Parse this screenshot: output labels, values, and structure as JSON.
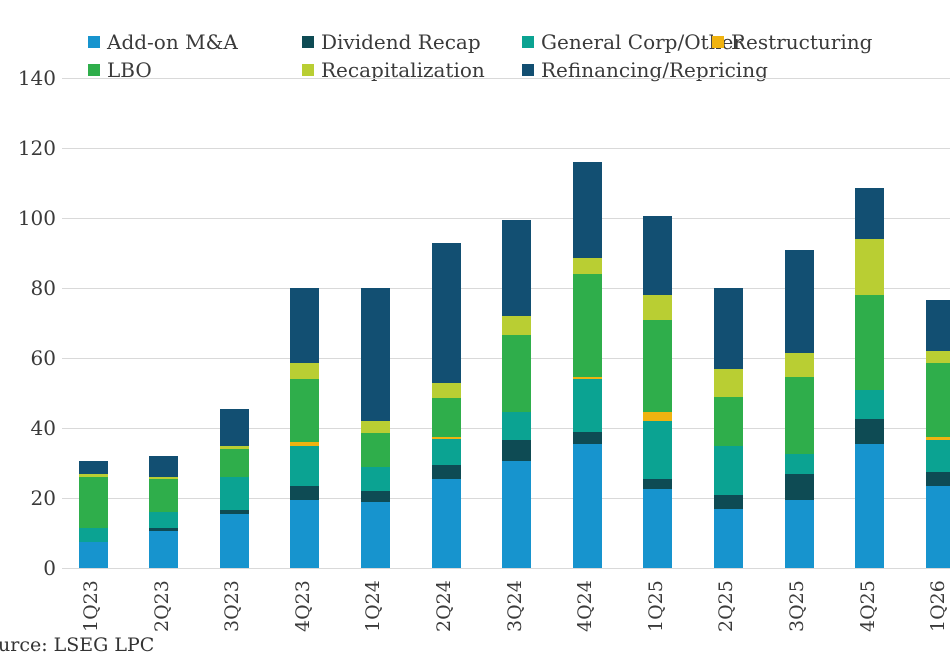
{
  "source_label": "urce:  LSEG LPC",
  "chart_data": {
    "type": "bar",
    "stacked": true,
    "title": "",
    "xlabel": "",
    "ylabel": "",
    "ylim": [
      0,
      140
    ],
    "yticks": [
      0,
      20,
      40,
      60,
      80,
      100,
      120,
      140
    ],
    "grid": true,
    "legend_position": "top",
    "legend_rows": [
      [
        "Add-on M&A",
        "Dividend Recap",
        "General Corp/Other",
        "Restructuring"
      ],
      [
        "LBO",
        "Recapitalization",
        "Refinancing/Repricing"
      ]
    ],
    "categories": [
      "1Q23",
      "2Q23",
      "3Q23",
      "4Q23",
      "1Q24",
      "2Q24",
      "3Q24",
      "4Q24",
      "1Q25",
      "2Q25",
      "3Q25",
      "4Q25",
      "1Q26"
    ],
    "series": [
      {
        "name": "Add-on M&A",
        "color": "#1794CE",
        "values": [
          7.5,
          10.5,
          15.5,
          19.5,
          19,
          25.5,
          30.5,
          35.5,
          22.5,
          17,
          19.5,
          35.5,
          23.5
        ]
      },
      {
        "name": "Dividend Recap",
        "color": "#0E4B54",
        "values": [
          0,
          1,
          1,
          4,
          3,
          4,
          6,
          3.5,
          3,
          4,
          7.5,
          7,
          4
        ]
      },
      {
        "name": "General Corp/Other",
        "color": "#0BA392",
        "values": [
          4,
          4.5,
          9.5,
          11.5,
          7,
          7.5,
          8,
          15,
          16.5,
          14,
          5.5,
          8.5,
          9
        ]
      },
      {
        "name": "Restructuring",
        "color": "#F0B310",
        "values": [
          0,
          0,
          0,
          1,
          0,
          0.5,
          0,
          0.5,
          2.5,
          0,
          0,
          0,
          1
        ]
      },
      {
        "name": "LBO",
        "color": "#2FAE4B",
        "values": [
          14.5,
          9.5,
          8,
          18,
          9.5,
          11,
          22,
          29.5,
          26.5,
          14,
          22,
          27,
          21
        ]
      },
      {
        "name": "Recapitalization",
        "color": "#B9CE33",
        "values": [
          1,
          0.5,
          1,
          4.5,
          3.5,
          4.5,
          5.5,
          4.5,
          7,
          8,
          7,
          16,
          3.5
        ]
      },
      {
        "name": "Refinancing/Repricing",
        "color": "#124F72",
        "values": [
          3.5,
          6,
          10.5,
          21.5,
          38,
          40,
          27.5,
          27.5,
          22.5,
          23,
          29.5,
          14.5,
          14.5
        ]
      }
    ],
    "totals": [
      30.5,
      32,
      45.5,
      80,
      80,
      93,
      99.5,
      116,
      100.5,
      80,
      91,
      108.5,
      76.5
    ]
  }
}
